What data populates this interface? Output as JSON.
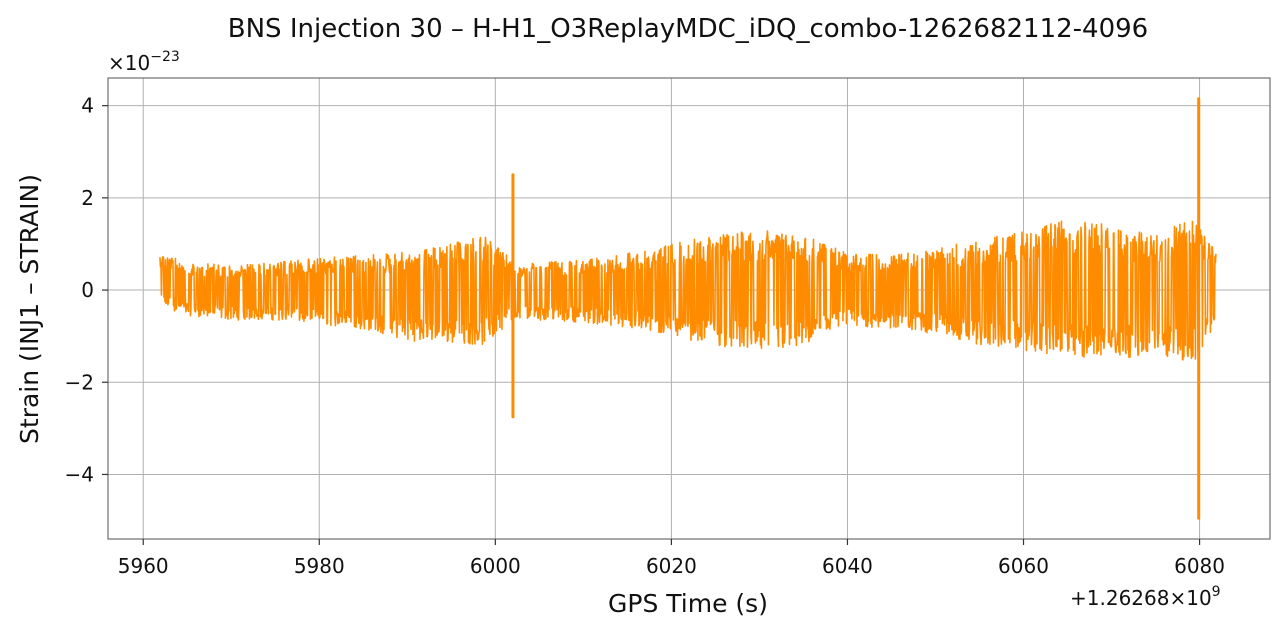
{
  "chart_data": {
    "type": "line",
    "title": "BNS Injection 30 – H-H1_O3ReplayMDC_iDQ_combo-1262682112-4096",
    "xlabel": "GPS Time (s)",
    "ylabel": "Strain (INJ1 – STRAIN)",
    "x_offset_text": "+1.26268×10",
    "x_offset_exp": "9",
    "y_scale_text": "×10",
    "y_scale_exp": "−23",
    "xlim": [
      5956,
      6088
    ],
    "ylim": [
      -5.4,
      4.6
    ],
    "xticks": [
      5960,
      5980,
      6000,
      6020,
      6040,
      6060,
      6080
    ],
    "yticks": [
      -4,
      -2,
      0,
      2,
      4
    ],
    "ytick_labels": [
      "−4",
      "−2",
      "0",
      "2",
      "4"
    ],
    "grid": true,
    "series": [
      {
        "color": "#ff8c00",
        "x_range": [
          5961.9,
          6081.9
        ],
        "envelope_x": [
          5961.9,
          5965,
          5970,
          5975,
          5980,
          5985,
          5990,
          5995,
          5999,
          6001,
          6003,
          6005,
          6010,
          6015,
          6020,
          6025,
          6030,
          6035,
          6040,
          6045,
          6050,
          6055,
          6060,
          6065,
          6070,
          6075,
          6079.5,
          6081.9
        ],
        "envelope_upper": [
          0.8,
          0.6,
          0.55,
          0.6,
          0.7,
          0.75,
          0.85,
          1.0,
          1.2,
          0.8,
          0.55,
          0.6,
          0.65,
          0.8,
          1.0,
          1.2,
          1.3,
          1.2,
          0.8,
          0.75,
          0.9,
          1.1,
          1.3,
          1.55,
          1.4,
          1.2,
          1.6,
          0.8
        ],
        "envelope_lower": [
          -0.35,
          -0.55,
          -0.65,
          -0.65,
          -0.75,
          -0.85,
          -1.1,
          -1.15,
          -1.2,
          -0.8,
          -0.6,
          -0.65,
          -0.7,
          -0.85,
          -1.0,
          -1.2,
          -1.35,
          -1.25,
          -0.8,
          -0.85,
          -0.95,
          -1.2,
          -1.3,
          -1.5,
          -1.5,
          -1.4,
          -1.6,
          -0.75
        ],
        "spikes": [
          {
            "x": 6002.0,
            "max": 2.5,
            "min": -2.75
          },
          {
            "x": 6079.9,
            "max": 4.15,
            "min": -4.95
          }
        ]
      }
    ]
  }
}
